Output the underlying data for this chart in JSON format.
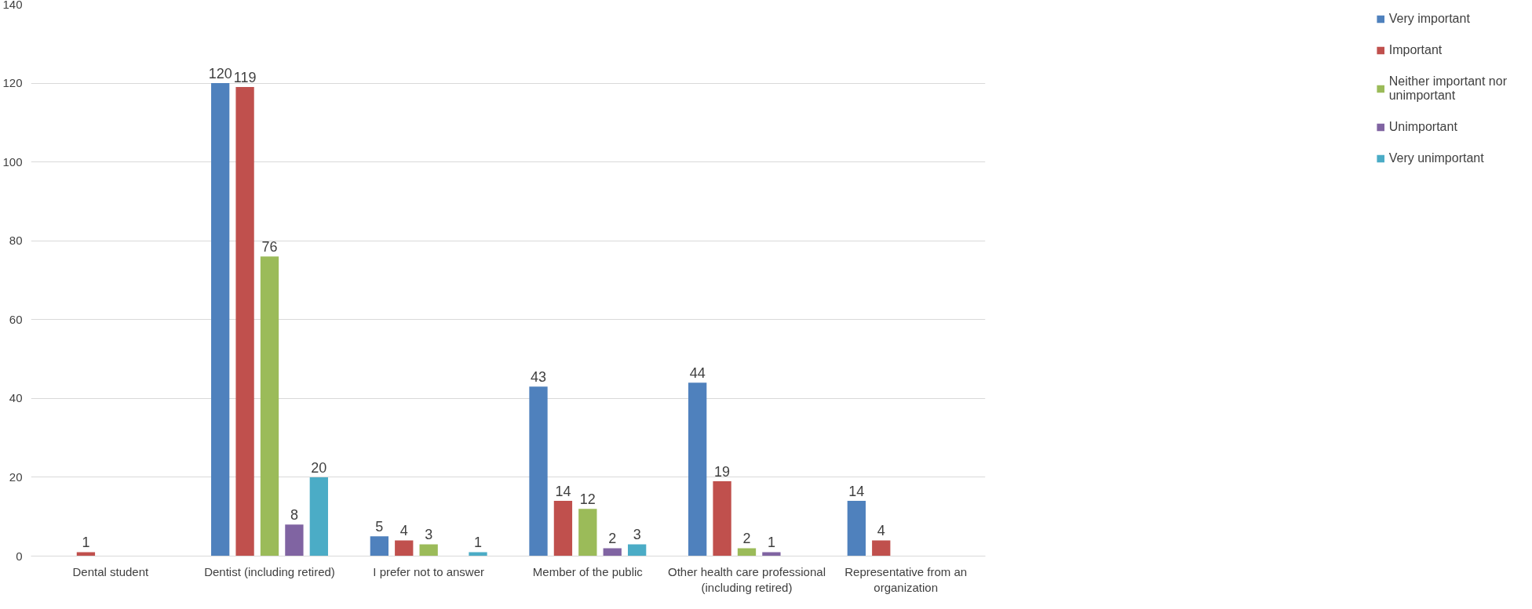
{
  "chart_data": {
    "type": "bar",
    "categories": [
      "Dental student",
      "Dentist (including retired)",
      "I prefer not to answer",
      "Member of the public",
      "Other health care professional (including retired)",
      "Representative from an organization"
    ],
    "series": [
      {
        "name": "Very important",
        "color": "#4f81bd",
        "values": [
          null,
          120,
          5,
          43,
          44,
          14
        ]
      },
      {
        "name": "Important",
        "color": "#c0504d",
        "values": [
          1,
          119,
          4,
          14,
          19,
          4
        ]
      },
      {
        "name": "Neither important nor unimportant",
        "color": "#9bbb59",
        "values": [
          null,
          76,
          3,
          12,
          2,
          null
        ]
      },
      {
        "name": "Unimportant",
        "color": "#8064a2",
        "values": [
          null,
          8,
          null,
          2,
          1,
          null
        ]
      },
      {
        "name": "Very unimportant",
        "color": "#4bacc6",
        "values": [
          null,
          20,
          1,
          3,
          null,
          null
        ]
      }
    ],
    "ylim": [
      0,
      140
    ],
    "yticks": [
      0,
      20,
      40,
      60,
      80,
      100,
      120,
      140
    ],
    "grid": "y",
    "legend": "right",
    "data_labels": true
  }
}
